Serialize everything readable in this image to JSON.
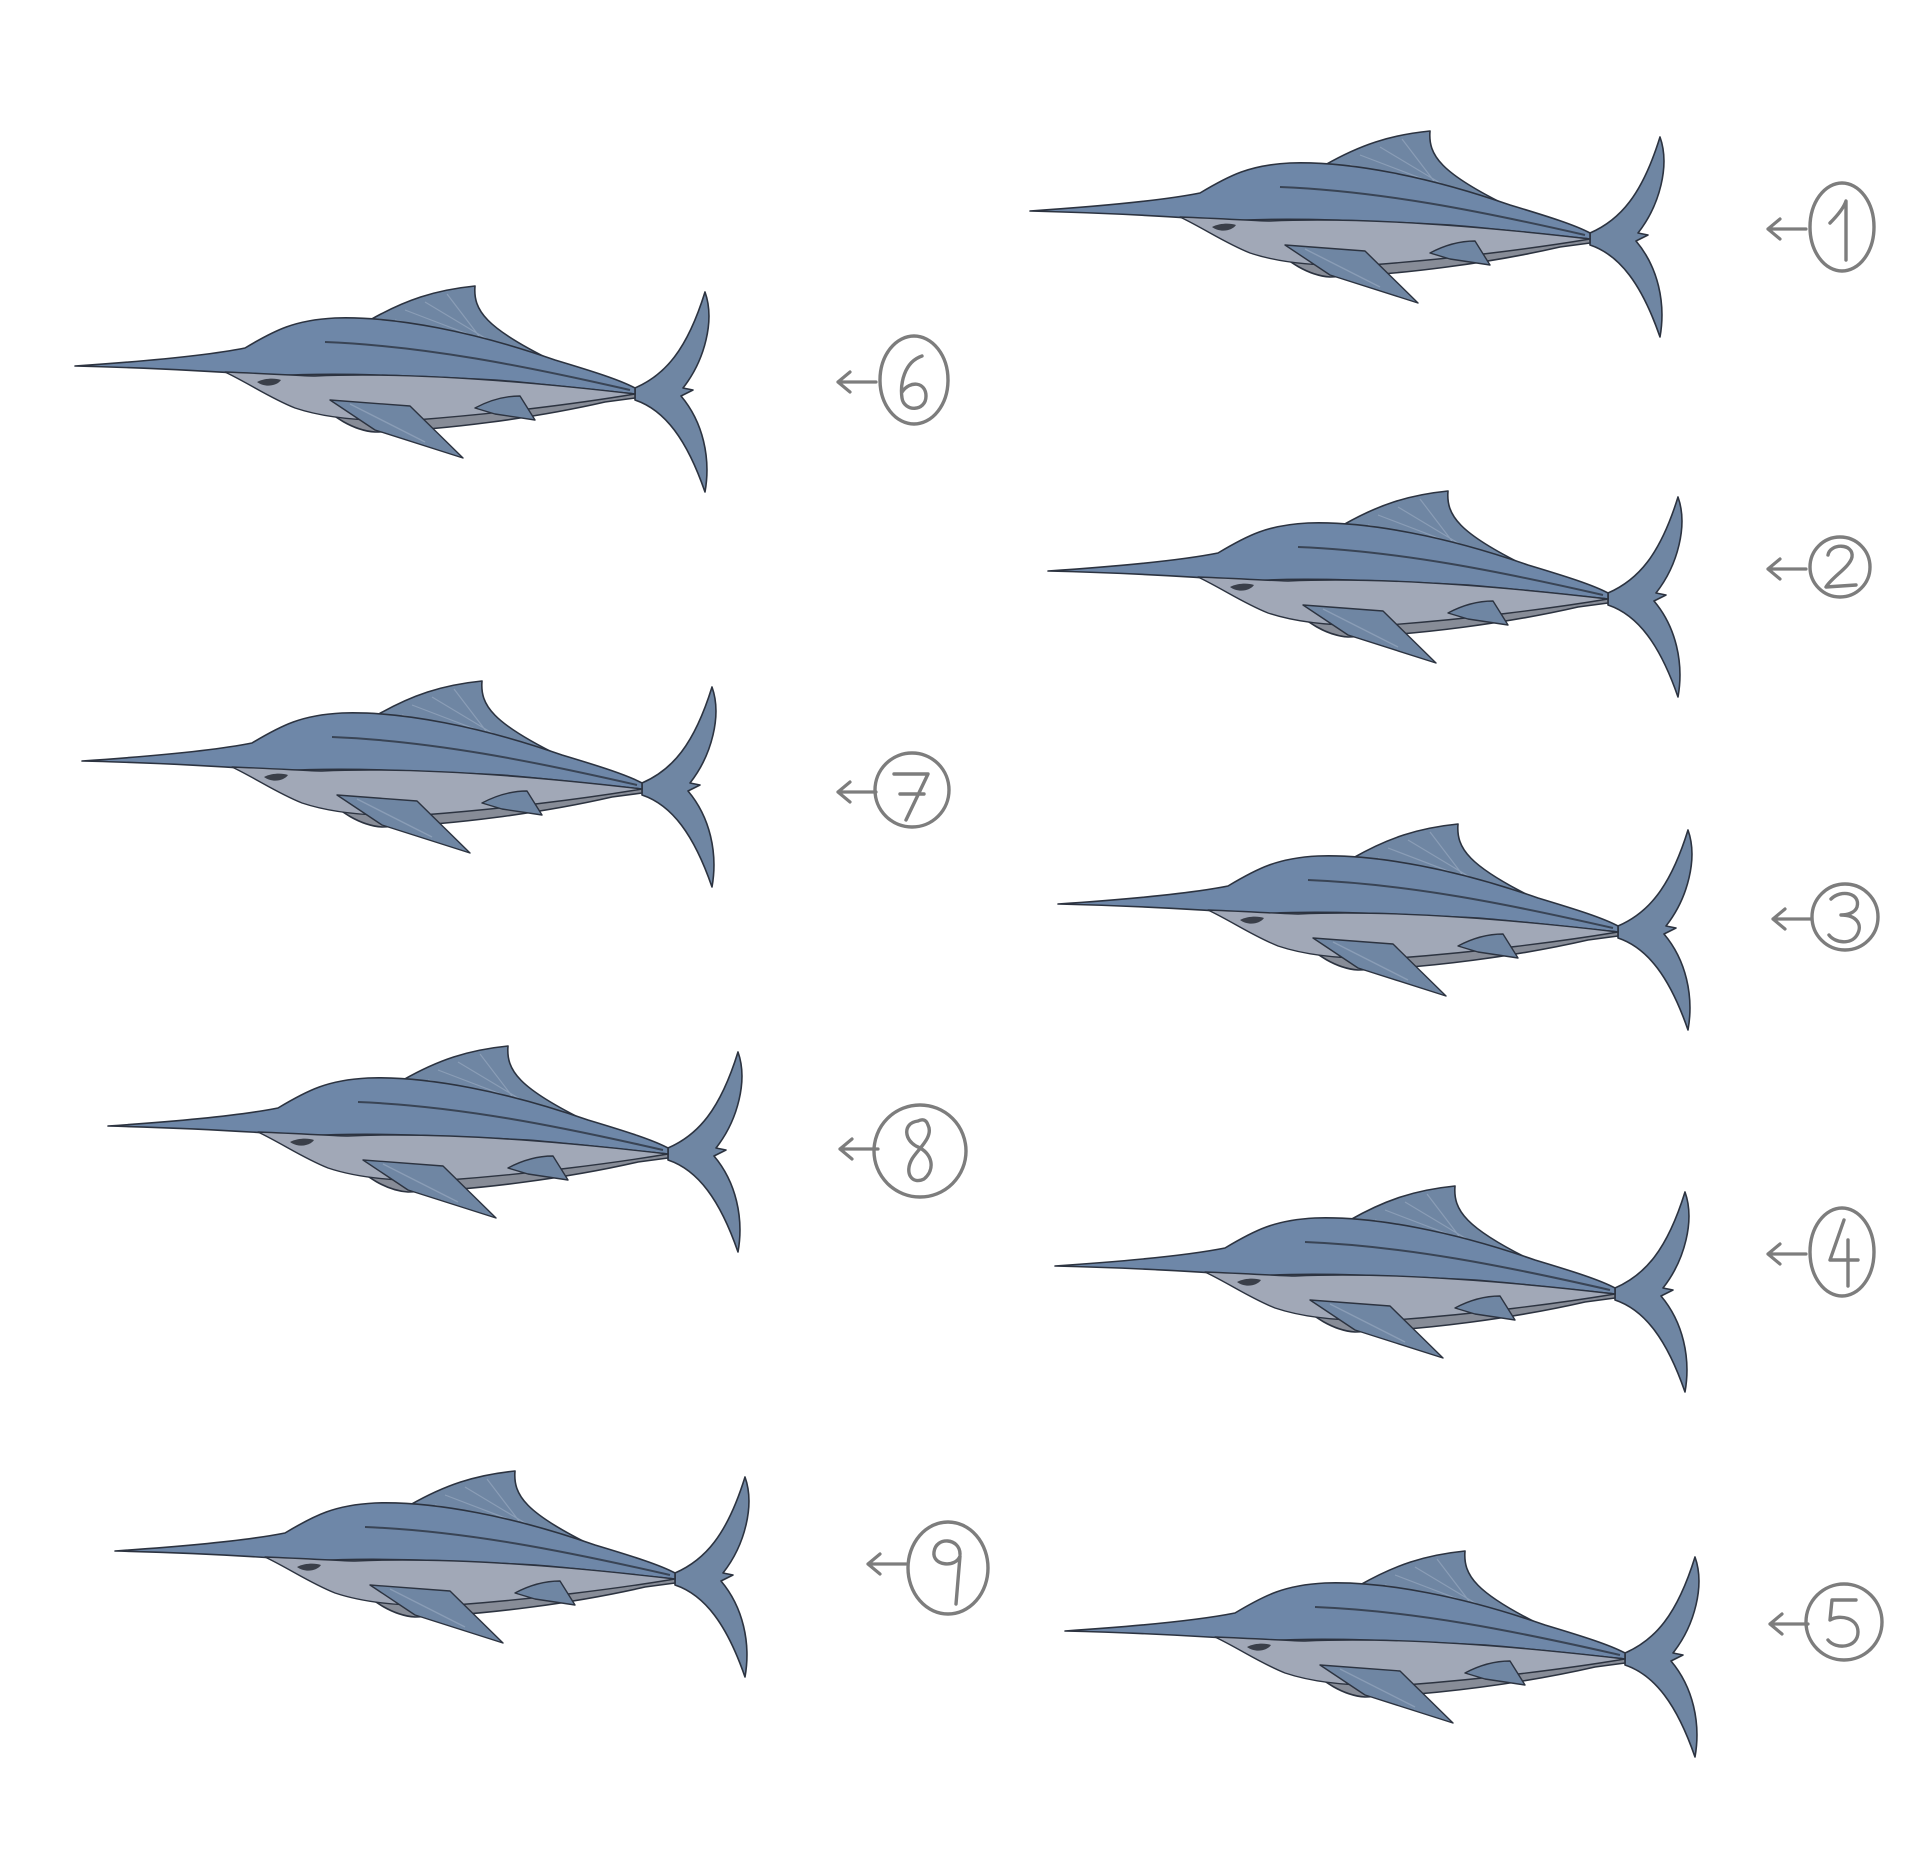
{
  "colors": {
    "background": "#ffffff",
    "body": "#6e87a8",
    "belly": "#a1a8b7",
    "belly_shadow": "#878c97",
    "fin": "#6f86a3",
    "fin_light": "#8a9db6",
    "outline": "#2c3340",
    "label_stroke": "#7d7d7d"
  },
  "sequence": [
    {
      "number": "1",
      "icon": "swordfish-frame-1",
      "label_icon": "circled-number-arrow"
    },
    {
      "number": "2",
      "icon": "swordfish-frame-2",
      "label_icon": "circled-number-arrow"
    },
    {
      "number": "3",
      "icon": "swordfish-frame-3",
      "label_icon": "circled-number-arrow"
    },
    {
      "number": "4",
      "icon": "swordfish-frame-4",
      "label_icon": "circled-number-arrow"
    },
    {
      "number": "5",
      "icon": "swordfish-frame-5",
      "label_icon": "circled-number-arrow"
    },
    {
      "number": "6",
      "icon": "swordfish-frame-6",
      "label_icon": "circled-number-arrow"
    },
    {
      "number": "7",
      "icon": "swordfish-frame-7",
      "label_icon": "circled-number-arrow"
    },
    {
      "number": "8",
      "icon": "swordfish-frame-8",
      "label_icon": "circled-number-arrow"
    },
    {
      "number": "9",
      "icon": "swordfish-frame-9",
      "label_icon": "circled-number-arrow"
    }
  ]
}
